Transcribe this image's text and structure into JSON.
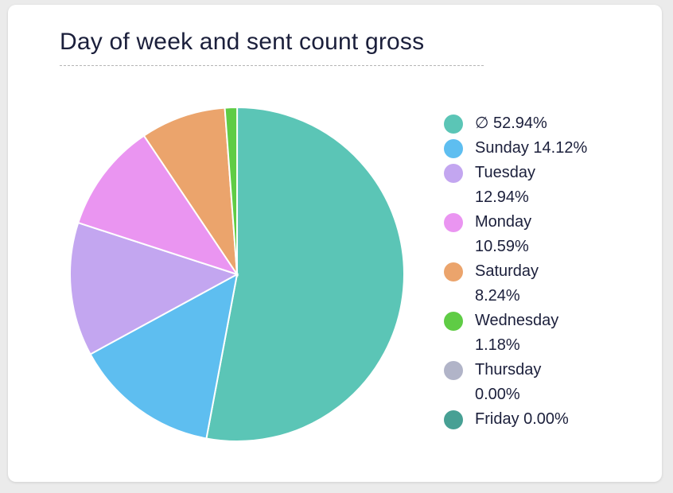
{
  "chart_data": {
    "type": "pie",
    "title": "Day of week and sent count gross",
    "legend_position": "right",
    "slices": [
      {
        "label": "∅",
        "percent": 52.94,
        "color": "#5bc5b6"
      },
      {
        "label": "Sunday",
        "percent": 14.12,
        "color": "#5ebef0"
      },
      {
        "label": "Tuesday",
        "percent": 12.94,
        "color": "#c3a6f0"
      },
      {
        "label": "Monday",
        "percent": 10.59,
        "color": "#ea95f1"
      },
      {
        "label": "Saturday",
        "percent": 8.24,
        "color": "#eba46c"
      },
      {
        "label": "Wednesday",
        "percent": 1.18,
        "color": "#5fcc45"
      },
      {
        "label": "Thursday",
        "percent": 0.0,
        "color": "#b1b4c8"
      },
      {
        "label": "Friday",
        "percent": 0.0,
        "color": "#47a094"
      }
    ],
    "legend_text": [
      "52.94%",
      "14.12%",
      "12.94%",
      "10.59%",
      "8.24%",
      "1.18%",
      "0.00%",
      "0.00%"
    ]
  }
}
